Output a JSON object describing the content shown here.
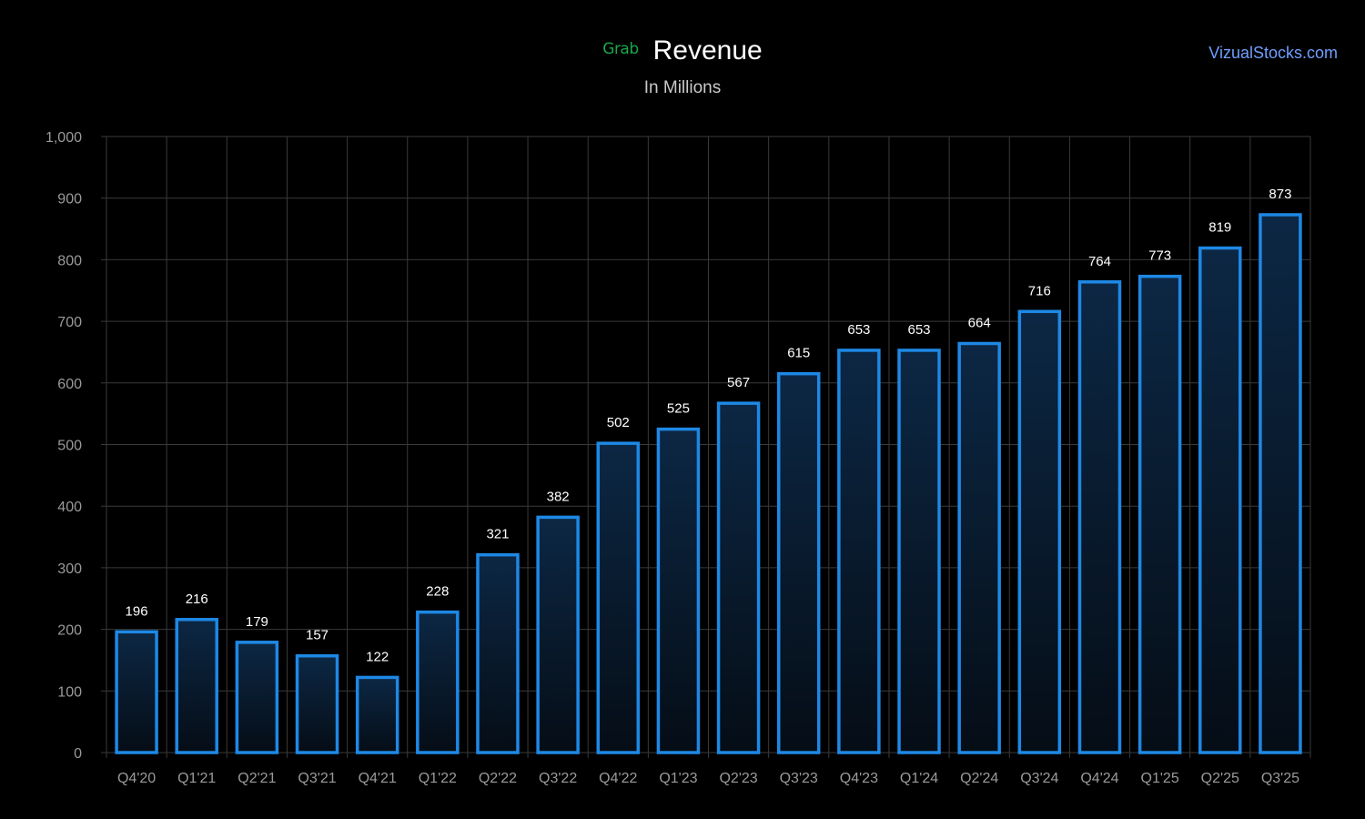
{
  "header": {
    "logo_text": "Grab",
    "title": "Revenue",
    "subtitle": "In Millions",
    "site": "VizualStocks.com"
  },
  "colors": {
    "background": "#000000",
    "bar_stroke": "#1e88e5",
    "bar_fill_top": "#0c2744",
    "bar_fill_bottom": "#050d16",
    "grid": "#3a3a3a",
    "logo": "#1aa64a",
    "site_link": "#6f9fff"
  },
  "chart_data": {
    "type": "bar",
    "title": "Revenue",
    "subtitle": "In Millions",
    "categories": [
      "Q4'20",
      "Q1'21",
      "Q2'21",
      "Q3'21",
      "Q4'21",
      "Q1'22",
      "Q2'22",
      "Q3'22",
      "Q4'22",
      "Q1'23",
      "Q2'23",
      "Q3'23",
      "Q4'23",
      "Q1'24",
      "Q2'24",
      "Q3'24",
      "Q4'24",
      "Q1'25",
      "Q2'25",
      "Q3'25"
    ],
    "values": [
      196,
      216,
      179,
      157,
      122,
      228,
      321,
      382,
      502,
      525,
      567,
      615,
      653,
      653,
      664,
      716,
      764,
      773,
      819,
      873
    ],
    "ylim": [
      0,
      1000
    ],
    "yticks": [
      0,
      100,
      200,
      300,
      400,
      500,
      600,
      700,
      800,
      900,
      1000
    ],
    "ytick_labels": [
      "0",
      "100",
      "200",
      "300",
      "400",
      "500",
      "600",
      "700",
      "800",
      "900",
      "1,000"
    ],
    "grid": true,
    "xlabel": "",
    "ylabel": ""
  }
}
